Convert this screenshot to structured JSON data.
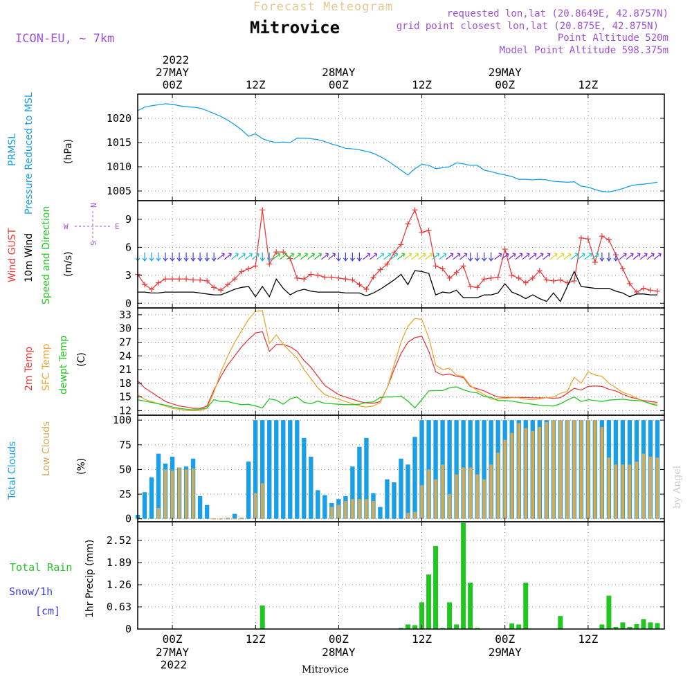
{
  "header": {
    "product": "Forecast Meteogram",
    "location": "Mitrovice",
    "model": "ICON-EU, ~ 7km",
    "requested": "requested lon,lat (20.8649E, 42.8757N)",
    "grid_point": "grid point closest lon,lat (20.875E, 42.875N)",
    "point_altitude": "Point Altitude 520m",
    "model_altitude": "Model Point Altitude 598.375m",
    "credit": "by Angel",
    "footer_location": "Mitrovice"
  },
  "time_axis": {
    "top_year": "2022",
    "bottom_year": "2022",
    "major_ticks": [
      {
        "hour": 0,
        "time": "00Z",
        "date": "27MAY"
      },
      {
        "hour": 12,
        "time": "12Z",
        "date": ""
      },
      {
        "hour": 24,
        "time": "00Z",
        "date": "28MAY"
      },
      {
        "hour": 36,
        "time": "12Z",
        "date": ""
      },
      {
        "hour": 48,
        "time": "00Z",
        "date": "29MAY"
      },
      {
        "hour": 60,
        "time": "12Z",
        "date": ""
      }
    ],
    "range_hours": [
      -5,
      71
    ]
  },
  "colors": {
    "pressure": "#1a9fe6",
    "gust": "#e83c3c",
    "wind": "#000000",
    "t2m": "#e83c3c",
    "sfc": "#e8a838",
    "dew": "#22c622",
    "total_clouds": "#1a9fe6",
    "low_clouds": "#d4aa55",
    "rain": "#22c622",
    "snow": "#3c3ce8",
    "purple": "#a050d8",
    "product": "#e8c890"
  },
  "chart_data": [
    {
      "type": "line",
      "panel": "pressure",
      "ylabel_1": "PRMSL",
      "ylabel_2": "Pressure Reduced to MSL",
      "unit": "(hPa)",
      "ylim": [
        1003,
        1025
      ],
      "yticks": [
        1005,
        1010,
        1015,
        1020
      ],
      "x": [
        -5,
        -4,
        -3,
        -2,
        -1,
        0,
        1,
        2,
        3,
        4,
        5,
        6,
        7,
        8,
        9,
        10,
        11,
        12,
        13,
        14,
        15,
        16,
        17,
        18,
        19,
        20,
        21,
        22,
        23,
        24,
        25,
        26,
        27,
        28,
        29,
        30,
        31,
        32,
        33,
        34,
        35,
        36,
        37,
        38,
        39,
        40,
        41,
        42,
        43,
        44,
        45,
        46,
        47,
        48,
        49,
        50,
        51,
        52,
        53,
        54,
        55,
        56,
        57,
        58,
        59,
        60,
        61,
        62,
        63,
        64,
        65,
        66,
        67,
        68,
        69,
        70
      ],
      "series": [
        {
          "name": "PRMSL",
          "values": [
            1021.6,
            1022.3,
            1022.6,
            1022.8,
            1023.0,
            1022.9,
            1022.6,
            1022.4,
            1022.3,
            1022.1,
            1021.6,
            1021.0,
            1020.4,
            1019.6,
            1018.7,
            1017.6,
            1016.3,
            1016.8,
            1015.8,
            1015.3,
            1015.0,
            1015.1,
            1015.0,
            1015.9,
            1015.9,
            1015.8,
            1015.6,
            1015.2,
            1014.7,
            1014.3,
            1013.8,
            1013.7,
            1013.5,
            1013.2,
            1012.8,
            1012.1,
            1011.3,
            1010.3,
            1009.3,
            1008.3,
            1009.6,
            1010.5,
            1010.3,
            1009.6,
            1009.8,
            1010.0,
            1010.8,
            1010.6,
            1010.3,
            1010.3,
            1009.3,
            1009.0,
            1008.6,
            1008.3,
            1008.0,
            1007.4,
            1007.4,
            1007.3,
            1007.4,
            1007.3,
            1007.0,
            1006.9,
            1006.8,
            1006.9,
            1006.0,
            1005.8,
            1005.3,
            1004.9,
            1004.8,
            1005.1,
            1005.5,
            1006.0,
            1006.3,
            1006.4,
            1006.6,
            1006.8
          ]
        }
      ]
    },
    {
      "type": "line",
      "panel": "wind",
      "ylabel_1": "Wind GUST",
      "ylabel_2": "10m Wind",
      "ylabel_3": "Speed and Direction",
      "unit": "(m/s)",
      "compass": {
        "n": "N",
        "s": "S",
        "w": "W",
        "e": "E"
      },
      "ylim": [
        -0.5,
        11
      ],
      "yticks": [
        0,
        3,
        6,
        9
      ],
      "x": [
        -5,
        -4,
        -3,
        -2,
        -1,
        0,
        1,
        2,
        3,
        4,
        5,
        6,
        7,
        8,
        9,
        10,
        11,
        12,
        13,
        14,
        15,
        16,
        17,
        18,
        19,
        20,
        21,
        22,
        23,
        24,
        25,
        26,
        27,
        28,
        29,
        30,
        31,
        32,
        33,
        34,
        35,
        36,
        37,
        38,
        39,
        40,
        41,
        42,
        43,
        44,
        45,
        46,
        47,
        48,
        49,
        50,
        51,
        52,
        53,
        54,
        55,
        56,
        57,
        58,
        59,
        60,
        61,
        62,
        63,
        64,
        65,
        66,
        67,
        68,
        69,
        70
      ],
      "series": [
        {
          "name": "Wind GUST",
          "values": [
            3.1,
            2.0,
            1.5,
            2.2,
            2.6,
            2.6,
            2.6,
            2.6,
            2.5,
            2.5,
            2.4,
            1.7,
            1.4,
            2.0,
            2.6,
            3.4,
            3.7,
            4.0,
            10.0,
            4.2,
            5.5,
            5.5,
            4.8,
            2.7,
            2.6,
            3.1,
            3.0,
            2.8,
            2.8,
            2.7,
            2.6,
            2.5,
            2.0,
            1.5,
            2.8,
            3.6,
            4.2,
            5.4,
            6.3,
            8.5,
            10.0,
            7.6,
            7.8,
            4.0,
            3.7,
            2.7,
            3.3,
            4.0,
            1.8,
            1.7,
            2.6,
            2.7,
            2.8,
            5.8,
            3.0,
            2.7,
            2.2,
            2.7,
            3.5,
            2.5,
            2.4,
            2.5,
            2.2,
            2.4,
            7.0,
            6.9,
            4.4,
            7.2,
            6.8,
            5.2,
            3.7,
            2.1,
            1.2,
            1.6,
            1.4,
            1.3
          ]
        },
        {
          "name": "10m Wind",
          "values": [
            1.2,
            1.2,
            1.1,
            1.1,
            1.2,
            1.2,
            1.2,
            1.2,
            1.2,
            1.1,
            1.0,
            0.9,
            0.9,
            1.2,
            1.5,
            1.7,
            1.8,
            0.7,
            1.8,
            0.7,
            2.6,
            1.6,
            0.9,
            1.3,
            1.5,
            1.3,
            1.2,
            1.2,
            1.2,
            1.2,
            1.1,
            1.1,
            1.1,
            0.8,
            1.1,
            1.5,
            2.0,
            2.5,
            3.1,
            2.0,
            3.5,
            3.4,
            3.2,
            0.9,
            1.2,
            1.1,
            1.4,
            0.6,
            0.6,
            0.6,
            0.9,
            0.9,
            1.1,
            2.1,
            1.2,
            0.9,
            0.5,
            0.9,
            0.5,
            0.2,
            1.1,
            0.2,
            1.8,
            3.4,
            1.8,
            1.7,
            1.6,
            1.6,
            1.6,
            1.3,
            1.1,
            0.7,
            1.0,
            1.0,
            0.9,
            0.9
          ]
        }
      ]
    },
    {
      "type": "line",
      "panel": "temperature",
      "ylabel_1": "2m Temp",
      "ylabel_2": "SFC Temp",
      "ylabel_3": "dewpt Temp",
      "unit": "(C)",
      "ylim": [
        11,
        34.5
      ],
      "yticks": [
        12,
        15,
        18,
        21,
        24,
        27,
        30,
        33
      ],
      "x": [
        -5,
        -4,
        -3,
        -2,
        -1,
        0,
        1,
        2,
        3,
        4,
        5,
        6,
        7,
        8,
        9,
        10,
        11,
        12,
        13,
        14,
        15,
        16,
        17,
        18,
        19,
        20,
        21,
        22,
        23,
        24,
        25,
        26,
        27,
        28,
        29,
        30,
        31,
        32,
        33,
        34,
        35,
        36,
        37,
        38,
        39,
        40,
        41,
        42,
        43,
        44,
        45,
        46,
        47,
        48,
        49,
        50,
        51,
        52,
        53,
        54,
        55,
        56,
        57,
        58,
        59,
        60,
        61,
        62,
        63,
        64,
        65,
        66,
        67,
        68,
        69,
        70
      ],
      "series": [
        {
          "name": "2m Temp",
          "values": [
            18.5,
            17.0,
            16.0,
            15.0,
            14.0,
            13.5,
            13.0,
            12.8,
            12.5,
            12.5,
            13.0,
            16.5,
            19.5,
            22.0,
            24.0,
            26.0,
            27.6,
            29.0,
            29.3,
            25.0,
            26.5,
            26.5,
            26.0,
            25.0,
            23.0,
            21.5,
            19.5,
            17.5,
            16.5,
            15.5,
            15.0,
            14.5,
            14.0,
            13.7,
            13.6,
            14.0,
            17.0,
            21.0,
            24.5,
            27.0,
            28.0,
            28.3,
            25.0,
            20.5,
            19.8,
            20.0,
            19.5,
            19.3,
            17.3,
            16.8,
            16.3,
            15.6,
            15.0,
            14.9,
            14.9,
            14.9,
            14.9,
            14.8,
            14.8,
            14.8,
            14.7,
            14.8,
            15.8,
            16.9,
            16.5,
            17.3,
            17.4,
            17.3,
            16.7,
            16.3,
            15.6,
            15.0,
            14.6,
            14.2,
            14.0,
            13.8
          ]
        },
        {
          "name": "SFC Temp",
          "values": [
            15.5,
            14.5,
            14.0,
            13.5,
            13.0,
            12.5,
            12.3,
            12.0,
            12.0,
            12.0,
            12.5,
            16.0,
            20.5,
            24.0,
            27.0,
            29.5,
            32.0,
            33.8,
            33.9,
            26.7,
            28.6,
            26.5,
            25.0,
            23.5,
            21.0,
            19.0,
            17.0,
            15.5,
            15.0,
            14.5,
            14.0,
            13.5,
            13.0,
            12.8,
            13.0,
            13.8,
            17.0,
            22.0,
            27.0,
            30.5,
            32.2,
            32.0,
            28.0,
            22.0,
            21.0,
            21.3,
            19.8,
            19.5,
            17.5,
            16.4,
            15.5,
            14.5,
            14.6,
            14.7,
            14.8,
            14.8,
            14.5,
            14.4,
            14.6,
            14.8,
            15.0,
            15.8,
            16.2,
            19.3,
            18.0,
            20.5,
            19.8,
            19.5,
            18.0,
            17.0,
            16.0,
            15.5,
            14.8,
            14.0,
            13.6,
            13.4
          ]
        },
        {
          "name": "dewpt Temp",
          "values": [
            14.4,
            14.1,
            13.8,
            13.5,
            13.2,
            12.8,
            12.5,
            12.3,
            12.2,
            12.3,
            12.6,
            14.4,
            14.0,
            14.0,
            13.6,
            13.3,
            13.4,
            13.0,
            12.6,
            14.6,
            14.3,
            13.4,
            14.6,
            15.0,
            13.8,
            13.5,
            14.1,
            13.6,
            13.5,
            13.4,
            13.3,
            13.3,
            13.4,
            13.8,
            13.9,
            14.9,
            15.0,
            15.0,
            15.2,
            14.1,
            12.6,
            14.4,
            16.3,
            16.4,
            16.4,
            17.0,
            17.2,
            16.6,
            16.1,
            15.9,
            15.1,
            14.9,
            14.2,
            14.2,
            14.1,
            13.8,
            13.6,
            13.4,
            13.2,
            13.1,
            13.0,
            13.5,
            14.3,
            15.0,
            14.0,
            14.4,
            14.2,
            14.0,
            14.3,
            14.4,
            14.5,
            14.3,
            14.2,
            14.1,
            13.5,
            13.1
          ]
        }
      ]
    },
    {
      "type": "bar",
      "panel": "clouds",
      "ylabel_1": "Total Clouds",
      "ylabel_2": "Low Clouds",
      "unit": "(%)",
      "ylim": [
        -3,
        105
      ],
      "yticks": [
        0,
        25,
        50,
        75,
        100
      ],
      "x": [
        -5,
        -4,
        -3,
        -2,
        -1,
        0,
        1,
        2,
        3,
        4,
        5,
        6,
        7,
        8,
        9,
        10,
        11,
        12,
        13,
        14,
        15,
        16,
        17,
        18,
        19,
        20,
        21,
        22,
        23,
        24,
        25,
        26,
        27,
        28,
        29,
        30,
        31,
        32,
        33,
        34,
        35,
        36,
        37,
        38,
        39,
        40,
        41,
        42,
        43,
        44,
        45,
        46,
        47,
        48,
        49,
        50,
        51,
        52,
        53,
        54,
        55,
        56,
        57,
        58,
        59,
        60,
        61,
        62,
        63,
        64,
        65,
        66,
        67,
        68,
        69,
        70
      ],
      "series": [
        {
          "name": "Total Clouds",
          "values": [
            4,
            27,
            42,
            66,
            56,
            63,
            52,
            53,
            61,
            23,
            14,
            0,
            0,
            1,
            5,
            1,
            58,
            100,
            100,
            100,
            100,
            100,
            100,
            100,
            82,
            63,
            29,
            24,
            16,
            20,
            23,
            53,
            73,
            82,
            26,
            12,
            40,
            37,
            61,
            55,
            83,
            100,
            100,
            100,
            100,
            100,
            100,
            100,
            100,
            100,
            100,
            100,
            100,
            100,
            100,
            100,
            100,
            100,
            100,
            100,
            100,
            100,
            100,
            100,
            100,
            100,
            100,
            100,
            100,
            100,
            100,
            100,
            100,
            100,
            100,
            100
          ]
        },
        {
          "name": "Low Clouds",
          "values": [
            0,
            0,
            0,
            11,
            50,
            49,
            52,
            50,
            51,
            0,
            0,
            0,
            0,
            0,
            0,
            0,
            0,
            26,
            36,
            0,
            0,
            0,
            0,
            0,
            0,
            0,
            0,
            0,
            12,
            14,
            18,
            20,
            20,
            20,
            18,
            0,
            0,
            0,
            0,
            6,
            7,
            34,
            50,
            40,
            55,
            25,
            45,
            52,
            52,
            45,
            40,
            55,
            67,
            80,
            87,
            97,
            92,
            89,
            93,
            98,
            100,
            100,
            100,
            100,
            100,
            100,
            100,
            93,
            62,
            55,
            55,
            55,
            58,
            66,
            63,
            62
          ]
        }
      ]
    },
    {
      "type": "bar",
      "panel": "precip",
      "ylabel_1": "Total Rain",
      "ylabel_2": "Snow/1h",
      "ylabel_3": "[cm]",
      "unit": "1hr Precip (mm)",
      "ylim": [
        0,
        3.05
      ],
      "yticks": [
        0,
        0.63,
        1.26,
        1.89,
        2.52
      ],
      "ytick_labels": [
        "0",
        "0.63",
        "1.26",
        "1.89",
        "2.52"
      ],
      "x": [
        13,
        33,
        34,
        35,
        36,
        37,
        38,
        39,
        40,
        41,
        42,
        43,
        44,
        49,
        50,
        51,
        56,
        62,
        63,
        64,
        65,
        66,
        67,
        68,
        69,
        70
      ],
      "series": [
        {
          "name": "Total Rain",
          "values": [
            0.67,
            0.03,
            0.13,
            0.11,
            0.76,
            1.55,
            2.36,
            0.03,
            0.76,
            0.13,
            3.02,
            1.32,
            0.03,
            0.16,
            0.13,
            1.32,
            0.37,
            0.13,
            0.95,
            0.06,
            0.19,
            0.06,
            0.14,
            0.28,
            0.19,
            0.17
          ]
        }
      ]
    }
  ]
}
